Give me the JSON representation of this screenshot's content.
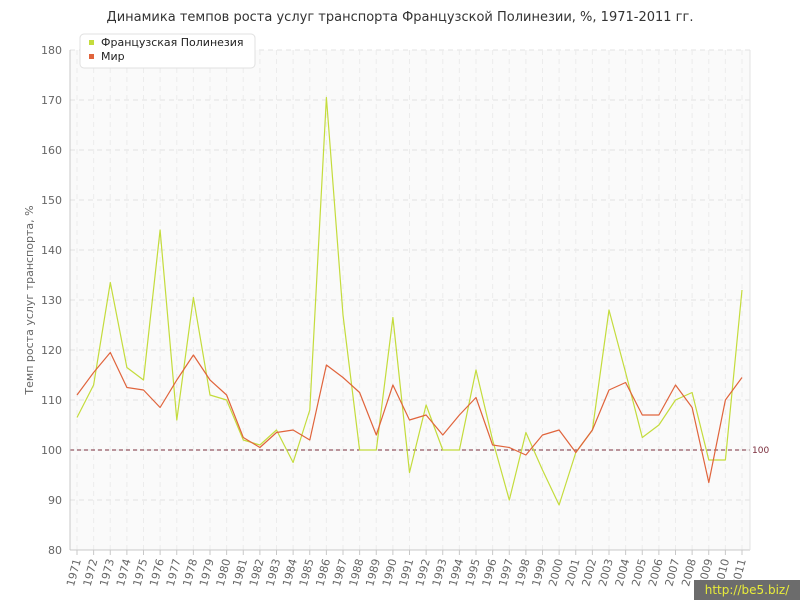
{
  "chart_data": {
    "type": "line",
    "title": "Динамика темпов роста услуг транспорта Французской Полинезии, %, 1971-2011 гг.",
    "ylabel": "Темп роста услуг транспорта, %",
    "xlabel": "",
    "ylim": [
      80,
      180
    ],
    "yticks": [
      80,
      90,
      100,
      110,
      120,
      130,
      140,
      150,
      160,
      170,
      180
    ],
    "grid": true,
    "legend_position": "top-left",
    "x": [
      "1971",
      "1972",
      "1973",
      "1974",
      "1975",
      "1976",
      "1977",
      "1978",
      "1979",
      "1980",
      "1981",
      "1982",
      "1983",
      "1984",
      "1985",
      "1986",
      "1987",
      "1988",
      "1989",
      "1990",
      "1991",
      "1992",
      "1993",
      "1994",
      "1995",
      "1996",
      "1997",
      "1998",
      "1999",
      "2000",
      "2001",
      "2002",
      "2003",
      "2004",
      "2005",
      "2006",
      "2007",
      "2008",
      "2009",
      "2010",
      "2011"
    ],
    "series": [
      {
        "name": "Французская Полинезия",
        "color": "#c4dc3c",
        "values": [
          106.5,
          113,
          133.5,
          116.5,
          114,
          144,
          106,
          130.5,
          111,
          110,
          102,
          101,
          104,
          97.5,
          108,
          170.5,
          127,
          100,
          100,
          126.5,
          95.5,
          109,
          100,
          100,
          116,
          102,
          90,
          103.5,
          96,
          89,
          99.5,
          104,
          128,
          115.5,
          102.5,
          105,
          110,
          111.5,
          98,
          98,
          132
        ]
      },
      {
        "name": "Мир",
        "color": "#e0643c",
        "values": [
          111,
          115.5,
          119.5,
          112.5,
          112,
          108.5,
          114,
          119,
          114,
          111,
          102.5,
          100.5,
          103.5,
          104,
          102,
          117,
          114.5,
          111.5,
          103,
          113,
          106,
          107,
          103,
          107,
          110.5,
          101,
          100.5,
          99,
          103,
          104,
          99.5,
          104,
          112,
          113.5,
          107,
          107,
          113,
          108.5,
          93.5,
          110,
          114.5
        ]
      }
    ],
    "reference_line": {
      "value": 100,
      "label": "100",
      "color": "#7a2d3c"
    }
  },
  "watermark": "http://be5.biz/"
}
